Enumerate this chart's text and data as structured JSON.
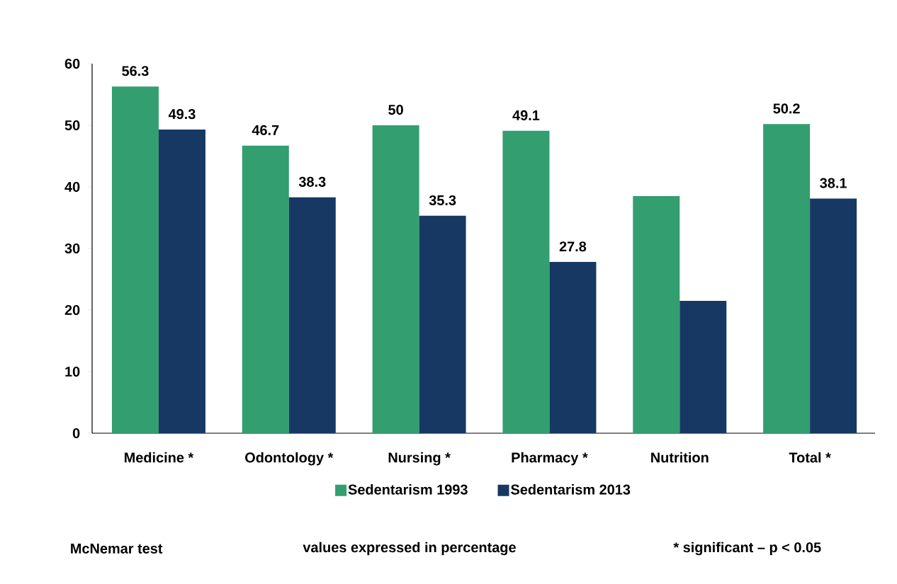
{
  "chart_data": {
    "type": "bar",
    "categories": [
      "Medicine *",
      "Odontology *",
      "Nursing *",
      "Pharmacy *",
      "Nutrition",
      "Total *"
    ],
    "series": [
      {
        "name": "Sedentarism 1993",
        "color": "#339e6f",
        "values": [
          56.3,
          46.7,
          50,
          49.1,
          38.5,
          50.2
        ],
        "value_labels": [
          "56.3",
          "46.7",
          "50",
          "49.1",
          null,
          "50.2"
        ]
      },
      {
        "name": "Sedentarism 2013",
        "color": "#173863",
        "values": [
          49.3,
          38.3,
          35.3,
          27.8,
          21.5,
          38.1
        ],
        "value_labels": [
          "49.3",
          "38.3",
          "35.3",
          "27.8",
          null,
          "38.1"
        ]
      }
    ],
    "ylim": [
      0,
      60
    ],
    "yticks": [
      0,
      10,
      20,
      30,
      40,
      50,
      60
    ],
    "grid": false,
    "legend": "bottom",
    "annotations": [
      "McNemar test",
      "values expressed in percentage",
      "* significant – p < 0.05"
    ]
  }
}
